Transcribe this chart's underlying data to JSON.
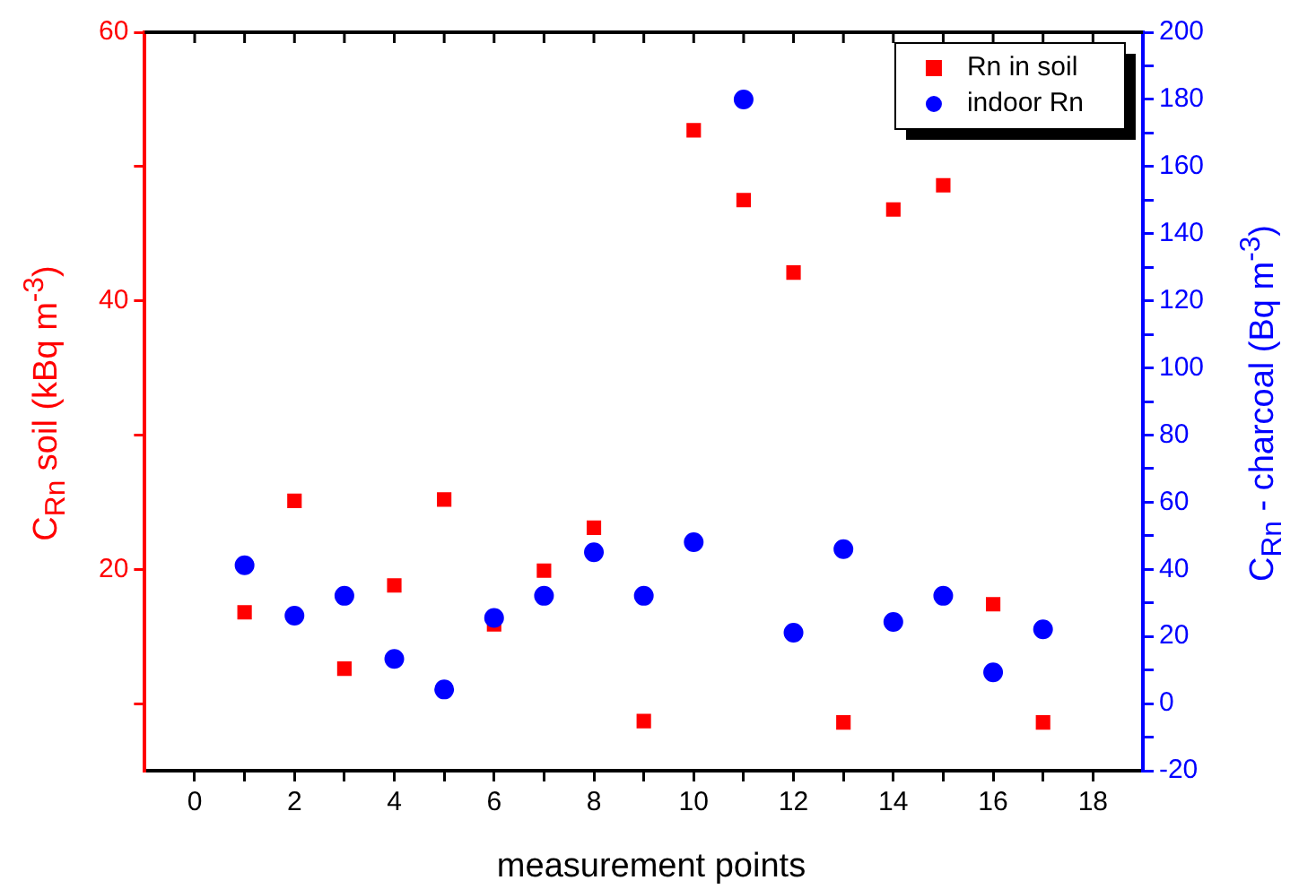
{
  "chart_data": {
    "type": "scatter",
    "xlabel": "measurement points",
    "ylabel": "C$_{Rn}$ soil (kBq m$^{-3}$)",
    "y2label": "C$_{Rn}$ - charcoal (Bq m$^{-3}$)",
    "x": [
      1,
      2,
      3,
      4,
      5,
      6,
      7,
      8,
      9,
      10,
      11,
      12,
      13,
      14,
      15,
      16,
      17
    ],
    "series": [
      {
        "name": "Rn in soil",
        "color": "#ff0000",
        "marker": "square",
        "values": [
          16.8,
          25.1,
          12.6,
          18.8,
          25.2,
          15.9,
          19.9,
          23.1,
          8.7,
          52.7,
          47.5,
          42.1,
          8.6,
          46.8,
          48.6,
          17.4,
          8.6
        ]
      },
      {
        "name": "indoor Rn",
        "color": "#0000ff",
        "marker": "circle",
        "axis": "y2",
        "values": [
          41.2,
          26.2,
          32.1,
          13.3,
          4.2,
          25.5,
          32.1,
          45.1,
          32.1,
          48.1,
          180,
          21.1,
          46,
          24.3,
          32.1,
          9.3,
          22.1
        ]
      }
    ],
    "xlim": [
      -1,
      19
    ],
    "xticks": [
      0,
      {
        "value": 1,
        "label": null
      },
      2,
      {
        "value": 3,
        "label": null
      },
      4,
      {
        "value": 5,
        "label": null
      },
      6,
      {
        "value": 7,
        "label": null
      },
      8,
      {
        "value": 9,
        "label": null
      },
      10,
      {
        "value": 11,
        "label": null
      },
      12,
      {
        "value": 13,
        "label": null
      },
      14,
      {
        "value": 15,
        "label": null
      },
      16,
      {
        "value": 17,
        "label": null
      },
      18
    ],
    "ylim": [
      5,
      60
    ],
    "yticks": [
      {
        "value": 10,
        "label": null
      },
      20,
      {
        "value": 30,
        "label": null
      },
      40,
      {
        "value": 50,
        "label": null
      },
      60
    ],
    "y2lim": [
      -20,
      200
    ],
    "y2ticks": [
      -20,
      {
        "value": -10,
        "label": null
      },
      0,
      {
        "value": 10,
        "label": null
      },
      20,
      {
        "value": 30,
        "label": null
      },
      40,
      {
        "value": 50,
        "label": null
      },
      60,
      {
        "value": 70,
        "label": null
      },
      80,
      {
        "value": 90,
        "label": null
      },
      100,
      {
        "value": 110,
        "label": null
      },
      120,
      {
        "value": 130,
        "label": null
      },
      140,
      {
        "value": 150,
        "label": null
      },
      160,
      {
        "value": 170,
        "label": null
      },
      180,
      {
        "value": 190,
        "label": null
      },
      200
    ],
    "legend": "top right"
  }
}
